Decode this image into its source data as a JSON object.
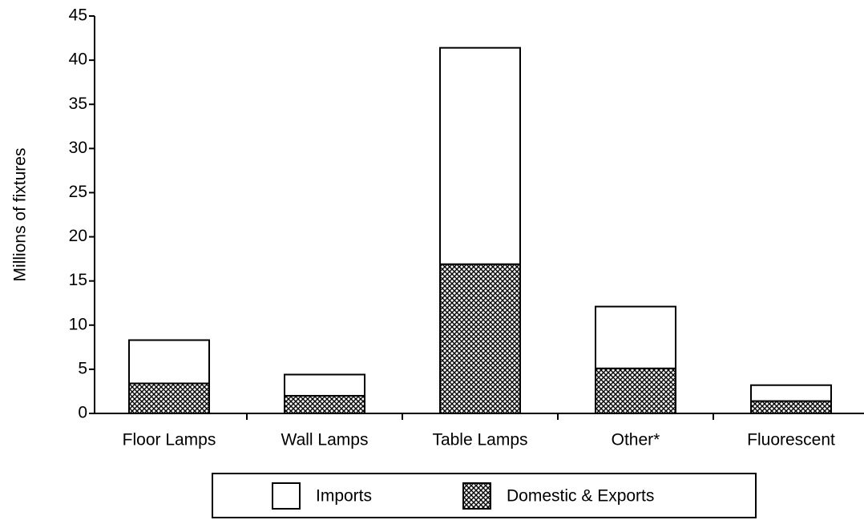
{
  "chart_data": {
    "type": "stacked_bar",
    "y_label": "Millions of fixtures",
    "categories": [
      "Floor Lamps",
      "Wall Lamps",
      "Table Lamps",
      "Other*",
      "Fluorescent"
    ],
    "series": [
      {
        "name": "Imports",
        "color": "#ffffff",
        "values": [
          4.9,
          2.4,
          24.5,
          7.0,
          1.8
        ]
      },
      {
        "name": "Domestic & Exports",
        "color": "#000000",
        "values": [
          3.4,
          2.0,
          16.9,
          5.1,
          1.4
        ]
      }
    ],
    "ylim": [
      0,
      45
    ],
    "yticks": [
      0,
      5,
      10,
      15,
      20,
      25,
      30,
      35,
      40,
      45
    ]
  }
}
